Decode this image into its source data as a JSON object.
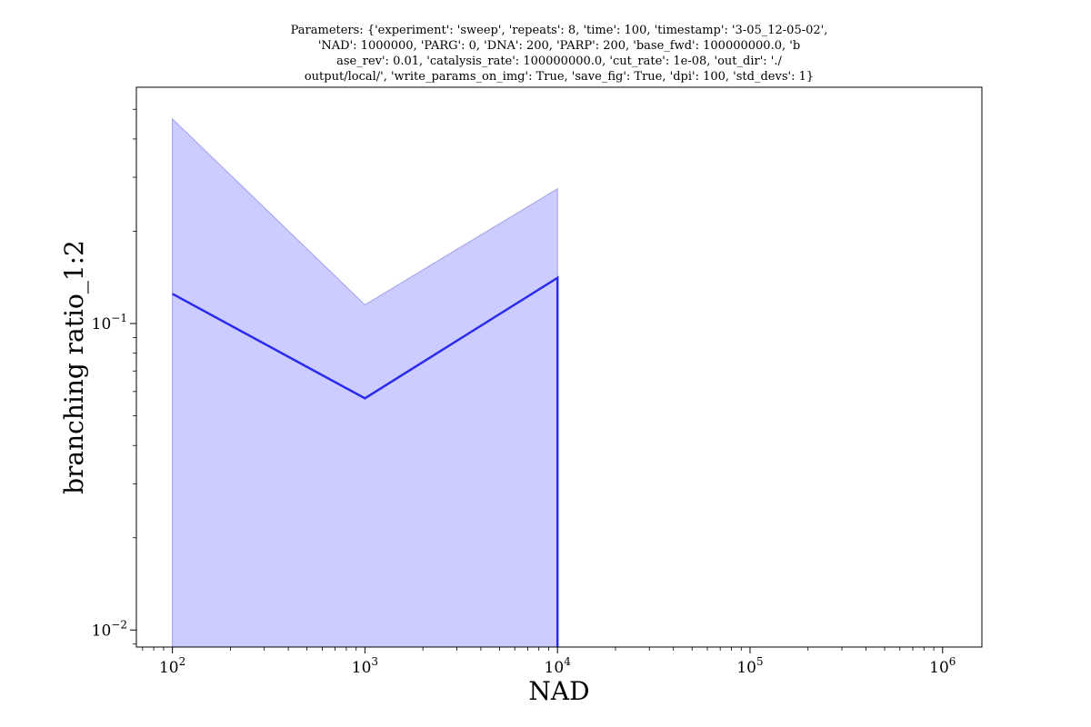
{
  "chart_data": {
    "type": "line",
    "title_lines": [
      "Parameters: {'experiment': 'sweep', 'repeats': 8, 'time': 100, 'timestamp': '3-05_12-05-02',",
      "'NAD': 1000000, 'PARG': 0, 'DNA': 200, 'PARP': 200, 'base_fwd': 100000000.0, 'b",
      "ase_rev': 0.01, 'catalysis_rate': 100000000.0, 'cut_rate': 1e-08, 'out_dir': './",
      "output/local/', 'write_params_on_img': True, 'save_fig': True, 'dpi': 100, 'std_devs': 1}"
    ],
    "xlabel": "NAD",
    "ylabel": "branching ratio_1:2",
    "x_scale": "log",
    "y_scale": "log",
    "xlim": [
      65,
      1600000
    ],
    "ylim": [
      0.0088,
      0.59
    ],
    "grid": false,
    "x_ticks": [
      {
        "value": 100,
        "base": "10",
        "exp": "2"
      },
      {
        "value": 1000,
        "base": "10",
        "exp": "3"
      },
      {
        "value": 10000,
        "base": "10",
        "exp": "4"
      },
      {
        "value": 100000,
        "base": "10",
        "exp": "5"
      },
      {
        "value": 1000000,
        "base": "10",
        "exp": "6"
      }
    ],
    "y_ticks": [
      {
        "value": 0.01,
        "base": "10",
        "exp": "−2"
      },
      {
        "value": 0.1,
        "base": "10",
        "exp": "−1"
      }
    ],
    "series": [
      {
        "x": [
          100,
          1000,
          10000,
          10000
        ],
        "y": [
          0.125,
          0.057,
          0.141,
          0.0088
        ],
        "color": "#2b2bf0"
      }
    ],
    "band": {
      "x": [
        100,
        1000,
        10000
      ],
      "upper": [
        0.465,
        0.115,
        0.275
      ],
      "lower": [
        0.0088,
        0.0088,
        0.0088
      ],
      "color": "#ccccff",
      "edge_color": "#aaaaee"
    }
  }
}
